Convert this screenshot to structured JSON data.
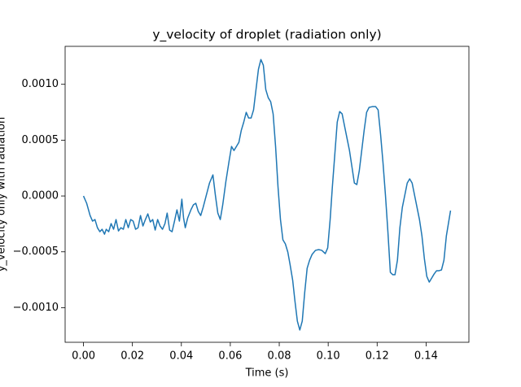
{
  "chart_data": {
    "type": "line",
    "title": "y_velocity of droplet (radiation only)",
    "x_label": "Time (s)",
    "y_label": "y_velocity only with radiation",
    "xlim": [
      -0.0075,
      0.1575
    ],
    "ylim": [
      -0.00131,
      0.00134
    ],
    "xticks": [
      {
        "value": 0,
        "label": "0.00"
      },
      {
        "value": 0.02,
        "label": "0.02"
      },
      {
        "value": 0.04,
        "label": "0.04"
      },
      {
        "value": 0.06,
        "label": "0.06"
      },
      {
        "value": 0.08,
        "label": "0.08"
      },
      {
        "value": 0.1,
        "label": "0.10"
      },
      {
        "value": 0.12,
        "label": "0.12"
      },
      {
        "value": 0.14,
        "label": "0.14"
      }
    ],
    "yticks": [
      {
        "value": -0.001,
        "label": "−0.0010"
      },
      {
        "value": -0.0005,
        "label": "−0.0005"
      },
      {
        "value": 0,
        "label": "0.0000"
      },
      {
        "value": 0.0005,
        "label": "0.0005"
      },
      {
        "value": 0.001,
        "label": "0.0010"
      }
    ],
    "series": [
      {
        "color": "#1f77b4",
        "x": [
          0,
          0.0013,
          0.0027,
          0.0037,
          0.0047,
          0.0057,
          0.0067,
          0.0076,
          0.0086,
          0.0093,
          0.0103,
          0.0113,
          0.0123,
          0.0133,
          0.0143,
          0.0153,
          0.0163,
          0.0173,
          0.0183,
          0.0193,
          0.0203,
          0.0213,
          0.0223,
          0.0233,
          0.0243,
          0.0253,
          0.0263,
          0.0273,
          0.0283,
          0.0293,
          0.0303,
          0.0313,
          0.0323,
          0.0333,
          0.0342,
          0.0352,
          0.0362,
          0.0372,
          0.0382,
          0.0392,
          0.0402,
          0.0409,
          0.0416,
          0.0426,
          0.0439,
          0.0449,
          0.0459,
          0.0469,
          0.0479,
          0.0489,
          0.0502,
          0.0515,
          0.0529,
          0.0539,
          0.0549,
          0.0559,
          0.0569,
          0.0582,
          0.0595,
          0.0605,
          0.0615,
          0.0625,
          0.0635,
          0.0645,
          0.0655,
          0.0665,
          0.0675,
          0.0685,
          0.0695,
          0.0705,
          0.0715,
          0.0725,
          0.0735,
          0.0745,
          0.0755,
          0.0765,
          0.0775,
          0.0785,
          0.0795,
          0.0805,
          0.0815,
          0.0825,
          0.0835,
          0.0844,
          0.0855,
          0.0864,
          0.0874,
          0.0884,
          0.0894,
          0.0904,
          0.0914,
          0.0924,
          0.0934,
          0.0948,
          0.0961,
          0.0974,
          0.0988,
          0.0998,
          0.1008,
          0.1017,
          0.1027,
          0.1037,
          0.1047,
          0.1057,
          0.1067,
          0.1077,
          0.1087,
          0.1097,
          0.1107,
          0.1117,
          0.1127,
          0.1137,
          0.1147,
          0.1157,
          0.1167,
          0.118,
          0.1194,
          0.1204,
          0.1214,
          0.1224,
          0.1234,
          0.1244,
          0.1254,
          0.1264,
          0.1273,
          0.1283,
          0.1293,
          0.1303,
          0.1313,
          0.1323,
          0.1333,
          0.1343,
          0.1353,
          0.1363,
          0.1373,
          0.1383,
          0.1393,
          0.1403,
          0.1413,
          0.1423,
          0.1433,
          0.1443,
          0.1453,
          0.1463,
          0.1473,
          0.1483,
          0.15
        ],
        "values": [
          0,
          -6.5e-05,
          -0.000175,
          -0.000225,
          -0.000211,
          -0.000284,
          -0.00032,
          -0.000298,
          -0.000342,
          -0.000298,
          -0.00032,
          -0.000247,
          -0.000298,
          -0.000211,
          -0.000313,
          -0.000284,
          -0.000298,
          -0.000211,
          -0.000284,
          -0.000211,
          -0.000225,
          -0.000298,
          -0.000284,
          -0.000175,
          -0.000269,
          -0.000211,
          -0.00016,
          -0.000233,
          -0.000211,
          -0.000305,
          -0.000211,
          -0.000269,
          -0.000298,
          -0.000247,
          -0.000153,
          -0.000305,
          -0.00032,
          -0.000225,
          -0.000124,
          -0.000225,
          -2.9e-05,
          -0.000196,
          -0.000284,
          -0.000196,
          -0.000124,
          -8e-05,
          -6.5e-05,
          -0.000138,
          -0.000175,
          -0.000102,
          7e-06,
          0.000116,
          0.000189,
          7e-06,
          -0.000153,
          -0.000211,
          -8e-05,
          0.000131,
          0.000313,
          0.000444,
          0.000407,
          0.000444,
          0.00048,
          0.000589,
          0.000662,
          0.000749,
          0.000698,
          0.000698,
          0.000771,
          0.000953,
          0.001135,
          0.001222,
          0.001171,
          0.000953,
          0.00088,
          0.000844,
          0.000735,
          0.000444,
          8e-05,
          -0.000211,
          -0.000393,
          -0.000429,
          -0.000502,
          -0.000611,
          -0.000756,
          -0.000938,
          -0.00112,
          -0.0012,
          -0.00112,
          -0.000865,
          -0.000647,
          -0.000575,
          -0.000524,
          -0.000487,
          -0.00048,
          -0.000487,
          -0.000516,
          -0.000465,
          -0.000211,
          8e-05,
          0.000371,
          0.000662,
          0.000756,
          0.000735,
          0.000625,
          0.000516,
          0.000407,
          0.000262,
          0.000116,
          0.000102,
          0.000225,
          0.000407,
          0.000589,
          0.000749,
          0.000793,
          0.0008,
          0.0008,
          0.000771,
          0.000553,
          0.000298,
          7e-06,
          -0.00032,
          -0.000684,
          -0.000705,
          -0.000705,
          -0.000575,
          -0.000284,
          -0.000102,
          7e-06,
          0.000116,
          0.000153,
          0.000116,
          7e-06,
          -0.000102,
          -0.000211,
          -0.000356,
          -0.00056,
          -0.00072,
          -0.000771,
          -0.000735,
          -0.000698,
          -0.000669,
          -0.000669,
          -0.000662,
          -0.000575,
          -0.000356,
          -0.000131
        ]
      }
    ]
  }
}
